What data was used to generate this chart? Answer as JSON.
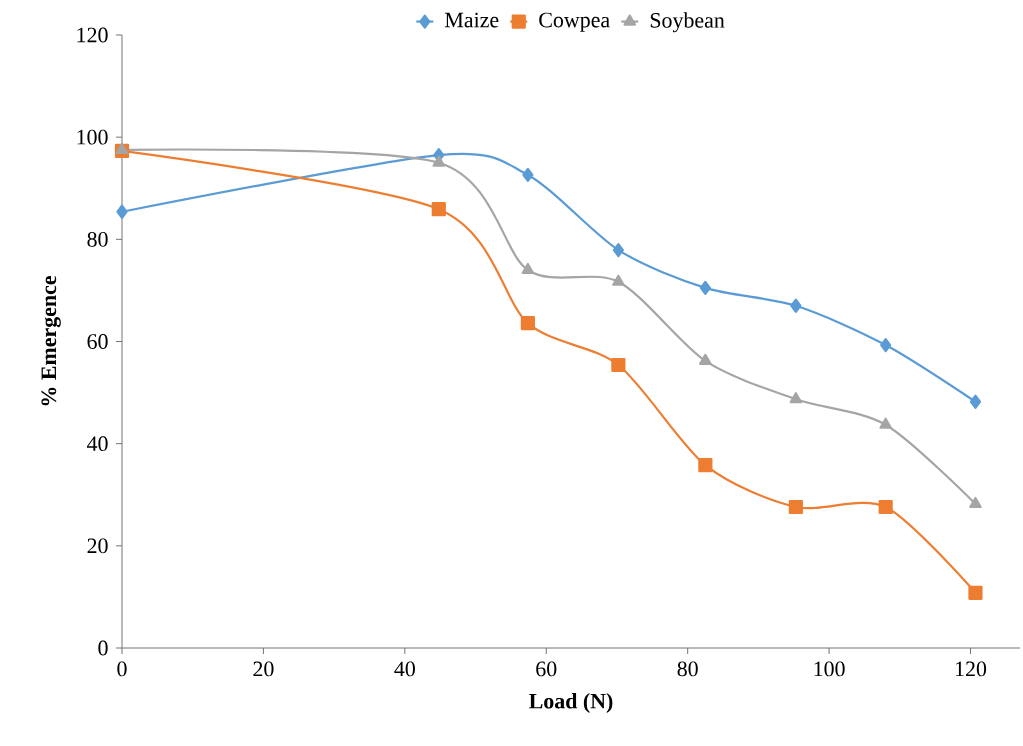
{
  "chart_data": {
    "type": "line",
    "xlabel": "Load (N)",
    "ylabel": "% Emergence",
    "x": [
      0,
      44.8,
      57.4,
      70.2,
      82.5,
      95.3,
      108,
      120.7
    ],
    "series": [
      {
        "name": "Maize",
        "color": "#5b9bd5",
        "marker": "diamond",
        "values": [
          85.4,
          96.5,
          92.6,
          77.9,
          70.5,
          67,
          59.3,
          48.2
        ]
      },
      {
        "name": "Cowpea",
        "color": "#ed7d31",
        "marker": "square",
        "values": [
          97.3,
          85.9,
          63.6,
          55.4,
          35.8,
          27.6,
          27.6,
          10.8
        ]
      },
      {
        "name": "Soybean",
        "color": "#a5a5a5",
        "marker": "triangle",
        "values": [
          97.5,
          95,
          74,
          71.7,
          56.2,
          48.7,
          43.7,
          28.2
        ]
      }
    ],
    "xlim": [
      0,
      127
    ],
    "ylim": [
      0,
      120
    ],
    "xticks": [
      0,
      20,
      40,
      60,
      80,
      100,
      120
    ],
    "yticks": [
      0,
      20,
      40,
      60,
      80,
      100,
      120
    ],
    "legend": "top",
    "grid": false,
    "line_style": "solid"
  }
}
